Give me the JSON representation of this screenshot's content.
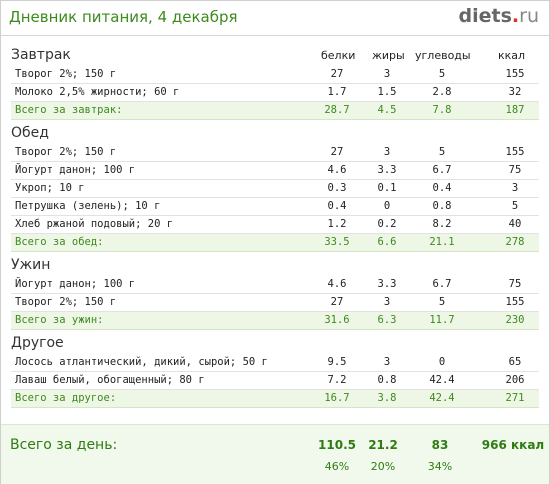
{
  "header": {
    "title": "Дневник питания, 4 декабря",
    "logo_main": "diets",
    "logo_dot": ".",
    "logo_tld": "ru"
  },
  "columns": [
    "белки",
    "жиры",
    "углеводы",
    "ккал"
  ],
  "sections": [
    {
      "title": "Завтрак",
      "items": [
        {
          "name": "Творог 2%; 150 г",
          "v": [
            "27",
            "3",
            "5",
            "155"
          ]
        },
        {
          "name": "Молоко 2,5% жирности; 60 г",
          "v": [
            "1.7",
            "1.5",
            "2.8",
            "32"
          ]
        }
      ],
      "total": {
        "name": "Всего за завтрак:",
        "v": [
          "28.7",
          "4.5",
          "7.8",
          "187"
        ]
      }
    },
    {
      "title": "Обед",
      "items": [
        {
          "name": "Творог 2%; 150 г",
          "v": [
            "27",
            "3",
            "5",
            "155"
          ]
        },
        {
          "name": "Йогурт данон; 100 г",
          "v": [
            "4.6",
            "3.3",
            "6.7",
            "75"
          ]
        },
        {
          "name": "Укроп; 10 г",
          "v": [
            "0.3",
            "0.1",
            "0.4",
            "3"
          ]
        },
        {
          "name": "Петрушка (зелень); 10 г",
          "v": [
            "0.4",
            "0",
            "0.8",
            "5"
          ]
        },
        {
          "name": "Хлеб ржаной подовый; 20 г",
          "v": [
            "1.2",
            "0.2",
            "8.2",
            "40"
          ]
        }
      ],
      "total": {
        "name": "Всего за обед:",
        "v": [
          "33.5",
          "6.6",
          "21.1",
          "278"
        ]
      }
    },
    {
      "title": "Ужин",
      "items": [
        {
          "name": "Йогурт данон; 100 г",
          "v": [
            "4.6",
            "3.3",
            "6.7",
            "75"
          ]
        },
        {
          "name": "Творог 2%; 150 г",
          "v": [
            "27",
            "3",
            "5",
            "155"
          ]
        }
      ],
      "total": {
        "name": "Всего за ужин:",
        "v": [
          "31.6",
          "6.3",
          "11.7",
          "230"
        ]
      }
    },
    {
      "title": "Другое",
      "items": [
        {
          "name": "Лосось атлантический, дикий, сырой; 50 г",
          "v": [
            "9.5",
            "3",
            "0",
            "65"
          ]
        },
        {
          "name": "Лаваш белый, обогащенный; 80 г",
          "v": [
            "7.2",
            "0.8",
            "42.4",
            "206"
          ]
        }
      ],
      "total": {
        "name": "Всего за другое:",
        "v": [
          "16.7",
          "3.8",
          "42.4",
          "271"
        ]
      }
    }
  ],
  "day_total": {
    "label": "Всего за день:",
    "v": [
      "110.5",
      "21.2",
      "83",
      "966 ккал"
    ],
    "pct": [
      "46%",
      "20%",
      "34%"
    ]
  }
}
